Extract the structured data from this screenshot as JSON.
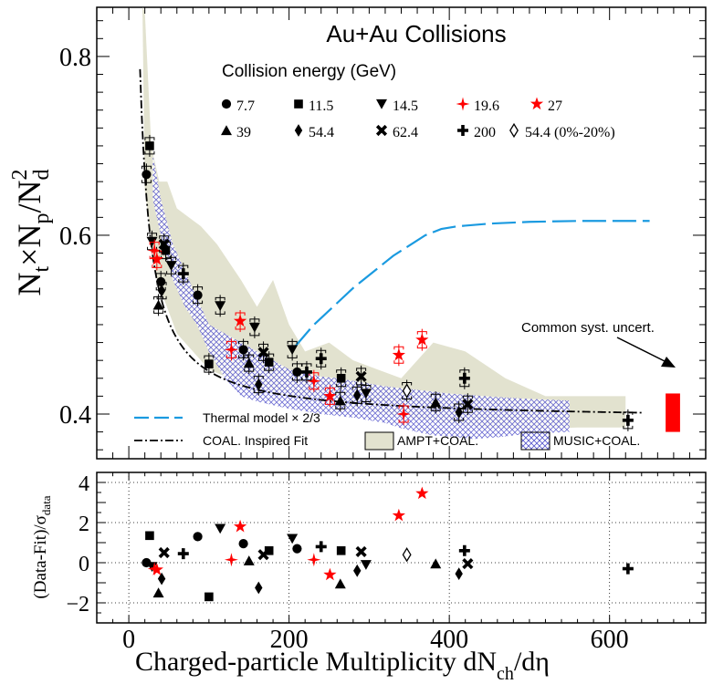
{
  "chart_data": [
    {
      "type": "scatter",
      "title": "Au+Au Collisions",
      "xlabel": "Charged-particle Multiplicity dN_ch/dη",
      "ylabel": "N_t×N_p/N_d^2",
      "xlim": [
        -40,
        720
      ],
      "ylim": [
        0.35,
        0.855
      ],
      "xticks": [
        "0",
        "200",
        "400",
        "600"
      ],
      "yticks": [
        "0.4",
        "0.6",
        "0.8"
      ],
      "legend_title": "Collision energy (GeV)",
      "energy_labels": [
        "7.7",
        "11.5",
        "14.5",
        "19.6",
        "27",
        "39",
        "54.4",
        "62.4",
        "200",
        "54.4 (0%-20%)"
      ],
      "model_labels": {
        "thermal": "Thermal model × 2/3",
        "fit": "COAL. Inspired Fit",
        "ampt": "AMPT+COAL.",
        "music": "MUSIC+COAL."
      },
      "syst_label": "Common syst. uncert.",
      "colors": {
        "black": "#000000",
        "red": "#ff0000",
        "thermal": "#1a9ae0",
        "ampt": "#e2e2cf",
        "music": "#5555cc"
      },
      "series": [
        {
          "name": "7.7",
          "marker": "circle",
          "color": "black",
          "points": [
            [
              22,
              0.668
            ],
            [
              40,
              0.548
            ],
            [
              86,
              0.533
            ],
            [
              143,
              0.472
            ],
            [
              210,
              0.447
            ]
          ]
        },
        {
          "name": "11.5",
          "marker": "square",
          "color": "black",
          "points": [
            [
              26,
              0.7
            ],
            [
              46,
              0.583
            ],
            [
              100,
              0.456
            ],
            [
              175,
              0.458
            ],
            [
              265,
              0.44
            ]
          ]
        },
        {
          "name": "14.5",
          "marker": "triangle-down",
          "color": "black",
          "points": [
            [
              29,
              0.593
            ],
            [
              53,
              0.566
            ],
            [
              114,
              0.521
            ],
            [
              157,
              0.497
            ],
            [
              204,
              0.472
            ],
            [
              296,
              0.423
            ]
          ]
        },
        {
          "name": "19.6",
          "marker": "star4",
          "color": "red",
          "points": [
            [
              32,
              0.583
            ],
            [
              128,
              0.472
            ],
            [
              231,
              0.437
            ],
            [
              343,
              0.4
            ]
          ]
        },
        {
          "name": "27",
          "marker": "star5",
          "color": "red",
          "points": [
            [
              35,
              0.573
            ],
            [
              139,
              0.504
            ],
            [
              251,
              0.42
            ],
            [
              337,
              0.466
            ],
            [
              366,
              0.483
            ]
          ]
        },
        {
          "name": "39",
          "marker": "triangle-up",
          "color": "black",
          "points": [
            [
              37,
              0.522
            ],
            [
              150,
              0.457
            ],
            [
              264,
              0.415
            ],
            [
              383,
              0.413
            ]
          ]
        },
        {
          "name": "54.4",
          "marker": "diamond",
          "color": "black",
          "points": [
            [
              41,
              0.538
            ],
            [
              162,
              0.433
            ],
            [
              285,
              0.421
            ],
            [
              412,
              0.402
            ]
          ]
        },
        {
          "name": "62.4",
          "marker": "x",
          "color": "black",
          "points": [
            [
              44,
              0.59
            ],
            [
              168,
              0.469
            ],
            [
              290,
              0.442
            ],
            [
              423,
              0.411
            ]
          ]
        },
        {
          "name": "200",
          "marker": "plus",
          "color": "black",
          "points": [
            [
              68,
              0.557
            ],
            [
              222,
              0.447
            ],
            [
              240,
              0.462
            ],
            [
              419,
              0.44
            ],
            [
              623,
              0.393
            ]
          ]
        },
        {
          "name": "54.4 (0%-20%)",
          "marker": "diamond-open",
          "color": "black",
          "points": [
            [
              347,
              0.426
            ]
          ]
        }
      ],
      "coal_fit": {
        "form": "a + b/x",
        "a": 0.3929,
        "b": 5.5
      },
      "thermal_model": {
        "x": [
          207,
          230,
          280,
          330,
          370,
          390,
          410,
          450,
          500,
          560,
          620,
          650
        ],
        "y": [
          0.475,
          0.499,
          0.541,
          0.577,
          0.6,
          0.607,
          0.61,
          0.613,
          0.615,
          0.616,
          0.616,
          0.616
        ]
      },
      "ampt_band": {
        "upper_x": [
          17,
          20,
          28,
          38,
          48,
          60,
          75,
          90,
          110,
          125,
          140,
          160,
          180,
          200,
          220,
          250,
          280,
          310,
          340,
          380,
          420,
          470,
          520,
          570,
          620
        ],
        "upper_y": [
          0.855,
          0.85,
          0.7,
          0.66,
          0.66,
          0.63,
          0.62,
          0.61,
          0.59,
          0.57,
          0.55,
          0.52,
          0.55,
          0.5,
          0.47,
          0.48,
          0.46,
          0.45,
          0.44,
          0.48,
          0.47,
          0.44,
          0.42,
          0.42,
          0.42
        ],
        "lower_x": [
          620,
          560,
          500,
          440,
          380,
          320,
          260,
          200,
          150,
          100,
          60,
          35,
          20
        ],
        "lower_y": [
          0.385,
          0.385,
          0.383,
          0.385,
          0.392,
          0.4,
          0.41,
          0.42,
          0.43,
          0.45,
          0.49,
          0.55,
          0.65
        ]
      },
      "music_band": {
        "upper_x": [
          30,
          40,
          55,
          70,
          85,
          100,
          120,
          140,
          160,
          180,
          200,
          220,
          240,
          260,
          280,
          300,
          320,
          340,
          360,
          380,
          400,
          430,
          460,
          500,
          550
        ],
        "upper_y": [
          0.69,
          0.64,
          0.59,
          0.56,
          0.53,
          0.5,
          0.49,
          0.48,
          0.47,
          0.46,
          0.45,
          0.446,
          0.442,
          0.44,
          0.437,
          0.434,
          0.431,
          0.429,
          0.427,
          0.425,
          0.423,
          0.421,
          0.419,
          0.417,
          0.415
        ],
        "lower_x": [
          550,
          500,
          460,
          430,
          400,
          380,
          360,
          340,
          320,
          300,
          280,
          260,
          240,
          220,
          200,
          180,
          160,
          140,
          120,
          100,
          85,
          70,
          55,
          40,
          30
        ],
        "lower_y": [
          0.38,
          0.378,
          0.374,
          0.372,
          0.375,
          0.376,
          0.38,
          0.384,
          0.39,
          0.393,
          0.396,
          0.398,
          0.4,
          0.403,
          0.406,
          0.41,
          0.414,
          0.42,
          0.44,
          0.47,
          0.5,
          0.52,
          0.55,
          0.6,
          0.64
        ]
      },
      "syst_box": {
        "x": [
          670,
          688
        ],
        "y": [
          0.38,
          0.423
        ]
      }
    },
    {
      "type": "scatter",
      "xlabel": "Charged-particle Multiplicity dN_ch/dη",
      "ylabel": "(Data-Fit)/σ_data",
      "xlim": [
        -40,
        720
      ],
      "ylim": [
        -3,
        4.5
      ],
      "yticks": [
        "−2",
        "0",
        "2",
        "4"
      ],
      "gridlines_y": [
        -2,
        0,
        2,
        4
      ],
      "series": [
        {
          "name": "7.7",
          "marker": "circle",
          "color": "black",
          "points": [
            [
              22,
              0.0
            ],
            [
              86,
              1.3
            ],
            [
              143,
              0.95
            ],
            [
              210,
              0.7
            ]
          ]
        },
        {
          "name": "11.5",
          "marker": "square",
          "color": "black",
          "points": [
            [
              26,
              1.35
            ],
            [
              100,
              -1.7
            ],
            [
              175,
              0.6
            ],
            [
              265,
              0.6
            ]
          ]
        },
        {
          "name": "14.5",
          "marker": "triangle-down",
          "color": "black",
          "points": [
            [
              29,
              -0.2
            ],
            [
              114,
              1.7
            ],
            [
              204,
              1.2
            ],
            [
              296,
              -0.1
            ]
          ]
        },
        {
          "name": "19.6",
          "marker": "star4",
          "color": "red",
          "points": [
            [
              32,
              -0.3
            ],
            [
              128,
              0.15
            ],
            [
              231,
              0.15
            ]
          ]
        },
        {
          "name": "27",
          "marker": "star5",
          "color": "red",
          "points": [
            [
              35,
              -0.35
            ],
            [
              139,
              1.8
            ],
            [
              251,
              -0.6
            ],
            [
              337,
              2.35
            ],
            [
              366,
              3.45
            ]
          ]
        },
        {
          "name": "39",
          "marker": "triangle-up",
          "color": "black",
          "points": [
            [
              37,
              -1.5
            ],
            [
              150,
              0.1
            ],
            [
              264,
              -1.05
            ],
            [
              383,
              -0.05
            ]
          ]
        },
        {
          "name": "54.4",
          "marker": "diamond",
          "color": "black",
          "points": [
            [
              41,
              -0.8
            ],
            [
              162,
              -1.25
            ],
            [
              285,
              -0.4
            ],
            [
              412,
              -0.55
            ]
          ]
        },
        {
          "name": "62.4",
          "marker": "x",
          "color": "black",
          "points": [
            [
              44,
              0.5
            ],
            [
              168,
              0.4
            ],
            [
              290,
              0.55
            ],
            [
              423,
              -0.05
            ]
          ]
        },
        {
          "name": "200",
          "marker": "plus",
          "color": "black",
          "points": [
            [
              68,
              0.45
            ],
            [
              240,
              0.8
            ],
            [
              419,
              0.6
            ],
            [
              623,
              -0.3
            ]
          ]
        },
        {
          "name": "54.4 (0%-20%)",
          "marker": "diamond-open",
          "color": "black",
          "points": [
            [
              347,
              0.4
            ]
          ]
        }
      ]
    }
  ]
}
